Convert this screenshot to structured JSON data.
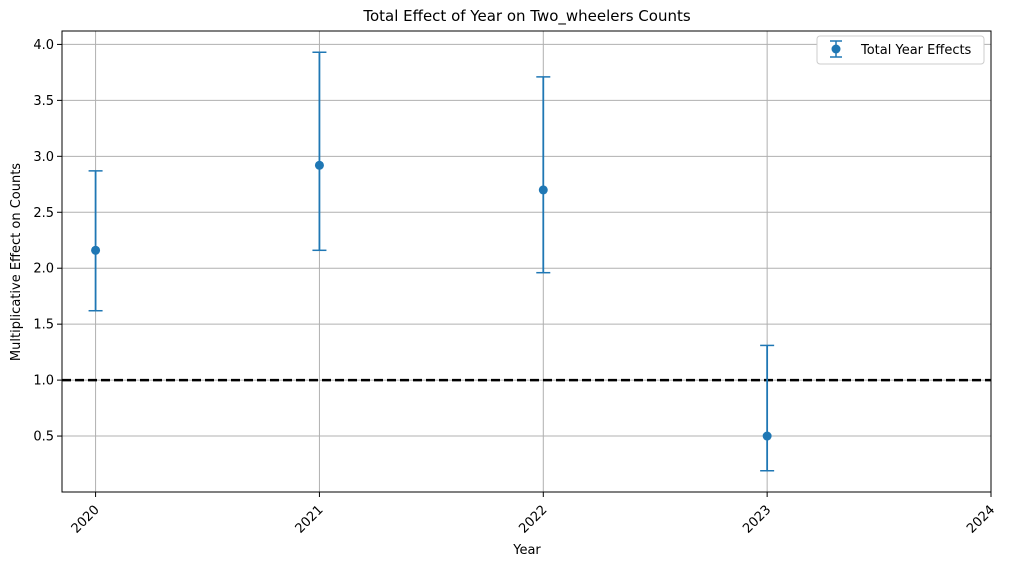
{
  "chart_data": {
    "type": "scatter",
    "title": "Total Effect of Year on Two_wheelers Counts",
    "xlabel": "Year",
    "ylabel": "Multiplicative Effect on Counts",
    "x_ticks": [
      "2020",
      "2021",
      "2022",
      "2023",
      "2024"
    ],
    "y_ticks": [
      "0.5",
      "1.0",
      "1.5",
      "2.0",
      "2.5",
      "3.0",
      "3.5",
      "4.0"
    ],
    "xlim": [
      2019.85,
      2024.0
    ],
    "ylim": [
      0.0,
      4.12
    ],
    "grid": true,
    "legend_position": "top-right",
    "reference_line": {
      "y": 1.0,
      "style": "dashed",
      "color": "#000000"
    },
    "series": [
      {
        "name": "Total Year Effects",
        "color": "#1f77b4",
        "marker": "circle",
        "points": [
          {
            "x": 2020,
            "y": 2.16,
            "lower": 1.62,
            "upper": 2.87
          },
          {
            "x": 2021,
            "y": 2.92,
            "lower": 2.16,
            "upper": 3.93
          },
          {
            "x": 2022,
            "y": 2.7,
            "lower": 1.96,
            "upper": 3.71
          },
          {
            "x": 2023,
            "y": 0.5,
            "lower": 0.19,
            "upper": 1.31
          }
        ]
      }
    ]
  }
}
